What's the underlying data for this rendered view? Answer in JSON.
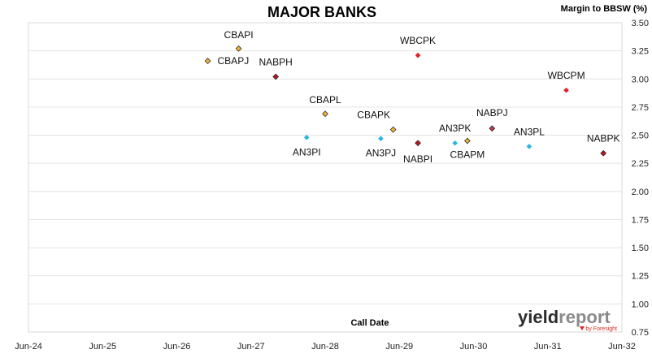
{
  "chart_data": {
    "type": "scatter",
    "title": "MAJOR BANKS",
    "ylabel": "Margin to BBSW (%)",
    "xlabel": "Call Date",
    "x_ticks": [
      "Jun-24",
      "Jun-25",
      "Jun-26",
      "Jun-27",
      "Jun-28",
      "Jun-29",
      "Jun-30",
      "Jun-31",
      "Jun-32"
    ],
    "xlim": [
      "2024-06",
      "2032-06"
    ],
    "ylim": [
      0.75,
      3.5
    ],
    "y_ticks": [
      "0.75",
      "1.00",
      "1.25",
      "1.50",
      "1.75",
      "2.00",
      "2.25",
      "2.50",
      "2.75",
      "3.00",
      "3.25",
      "3.50"
    ],
    "grid": "horizontal",
    "points": [
      {
        "label": "CBAPJ",
        "x": "2026-11",
        "y": 3.16,
        "color": "#f2b632"
      },
      {
        "label": "CBAPI",
        "x": "2027-04",
        "y": 3.27,
        "color": "#f2b632"
      },
      {
        "label": "NABPH",
        "x": "2027-10",
        "y": 3.02,
        "color": "#c0161f"
      },
      {
        "label": "AN3PI",
        "x": "2028-03",
        "y": 2.48,
        "color": "#27b7e3"
      },
      {
        "label": "CBAPL",
        "x": "2028-06",
        "y": 2.69,
        "color": "#f2b632"
      },
      {
        "label": "AN3PJ",
        "x": "2029-03",
        "y": 2.47,
        "color": "#27b7e3"
      },
      {
        "label": "CBAPK",
        "x": "2029-05",
        "y": 2.55,
        "color": "#f2b632"
      },
      {
        "label": "WBCPK",
        "x": "2029-09",
        "y": 3.21,
        "color": "#e31e26"
      },
      {
        "label": "NABPI",
        "x": "2029-09",
        "y": 2.43,
        "color": "#c0161f"
      },
      {
        "label": "AN3PK",
        "x": "2030-03",
        "y": 2.43,
        "color": "#27b7e3"
      },
      {
        "label": "CBAPM",
        "x": "2030-05",
        "y": 2.45,
        "color": "#f2b632"
      },
      {
        "label": "NABPJ",
        "x": "2030-09",
        "y": 2.56,
        "color": "#c0394c"
      },
      {
        "label": "AN3PL",
        "x": "2031-03",
        "y": 2.4,
        "color": "#27b7e3"
      },
      {
        "label": "WBCPM",
        "x": "2031-09",
        "y": 2.9,
        "color": "#e31e26"
      },
      {
        "label": "NABPK",
        "x": "2032-03",
        "y": 2.34,
        "color": "#c0161f"
      }
    ]
  },
  "logo": {
    "main_dark": "yield",
    "main_light": "report",
    "sub": "by Foresight",
    "dark_color": "#2c2c2c",
    "light_color": "#8a8a8a",
    "accent_color": "#d9291c"
  }
}
